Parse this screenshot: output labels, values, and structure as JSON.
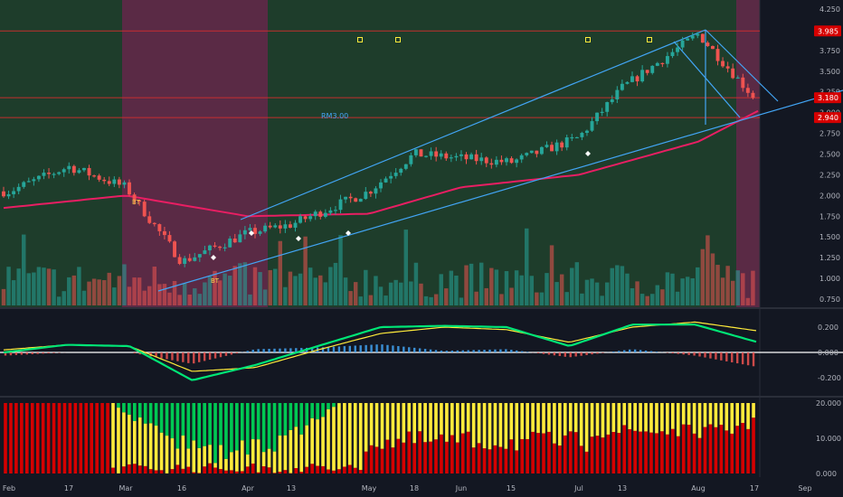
{
  "colors": {
    "background": "#131722",
    "bull_zone": "#1e3d2b",
    "bear_zone": "#5a2a45",
    "up": "#26a69a",
    "down": "#ef5350",
    "ema": "#e91e63",
    "channel": "#42a5f5",
    "level_line": "#d32f2f",
    "macd_fast": "#00e676",
    "macd_slow": "#ffeb3b",
    "macd_neg": "#ff1744",
    "hist_pos": "#42a5f5",
    "hist_neg": "#ef5350",
    "bar_green": "#00c853",
    "bar_yellow": "#ffeb3b",
    "bar_red": "#d50000"
  },
  "price_axis": {
    "ticks": [
      "4.250",
      "4.000",
      "3.750",
      "3.500",
      "3.250",
      "3.000",
      "2.750",
      "2.500",
      "2.250",
      "2.000",
      "1.750",
      "1.500",
      "1.250",
      "1.000",
      "0.750"
    ],
    "badges": [
      {
        "label": "3.985",
        "value": 3.985
      },
      {
        "label": "3.180",
        "value": 3.18
      },
      {
        "label": "2.940",
        "value": 2.94
      }
    ]
  },
  "macd_axis": {
    "ticks": [
      "0.200",
      "0.000",
      "-0.200"
    ]
  },
  "osc_axis": {
    "ticks": [
      "20.000",
      "10.000",
      "0.000"
    ]
  },
  "time_axis": {
    "ticks": [
      "Feb",
      "17",
      "Mar",
      "16",
      "Apr",
      "13",
      "May",
      "18",
      "Jun",
      "15",
      "Jul",
      "13",
      "Aug",
      "17",
      "Sep"
    ]
  },
  "annotations": {
    "price_label": "RM3.00",
    "signal_1": "BT",
    "signal_2": "BT"
  },
  "chart_data": {
    "type": "candlestick",
    "title": "",
    "ylim": [
      0.7,
      4.3
    ],
    "levels": [
      3.985,
      3.18,
      2.94
    ],
    "close_anchors": [
      {
        "x": "Feb",
        "v": 2.05
      },
      {
        "x": "17",
        "v": 2.35
      },
      {
        "x": "Mar",
        "v": 2.1
      },
      {
        "x": "16",
        "v": 1.2
      },
      {
        "x": "Apr",
        "v": 1.55
      },
      {
        "x": "13",
        "v": 1.65
      },
      {
        "x": "May",
        "v": 2.05
      },
      {
        "x": "18",
        "v": 2.5
      },
      {
        "x": "Jun",
        "v": 2.45
      },
      {
        "x": "15",
        "v": 2.4
      },
      {
        "x": "Jul",
        "v": 2.7
      },
      {
        "x": "13",
        "v": 3.3
      },
      {
        "x": "Aug",
        "v": 3.95
      },
      {
        "x": "17",
        "v": 3.18
      }
    ],
    "ema_anchors": [
      {
        "x": "Feb",
        "v": 1.85
      },
      {
        "x": "Mar",
        "v": 2.0
      },
      {
        "x": "Apr",
        "v": 1.75
      },
      {
        "x": "May",
        "v": 1.78
      },
      {
        "x": "Jun",
        "v": 2.1
      },
      {
        "x": "Jul",
        "v": 2.25
      },
      {
        "x": "Aug",
        "v": 2.65
      },
      {
        "x": "17",
        "v": 3.02
      }
    ],
    "macd": {
      "ylim": [
        -0.3,
        0.3
      ],
      "fast_anchors": [
        -0.0,
        0.06,
        0.05,
        -0.22,
        -0.1,
        0.05,
        0.2,
        0.21,
        0.2,
        0.05,
        0.22,
        0.22,
        0.08
      ],
      "slow_anchors": [
        0.02,
        0.06,
        0.05,
        -0.15,
        -0.12,
        0.02,
        0.15,
        0.2,
        0.18,
        0.08,
        0.2,
        0.24,
        0.17
      ]
    },
    "oscillator": {
      "ylim": [
        0,
        20
      ]
    }
  }
}
